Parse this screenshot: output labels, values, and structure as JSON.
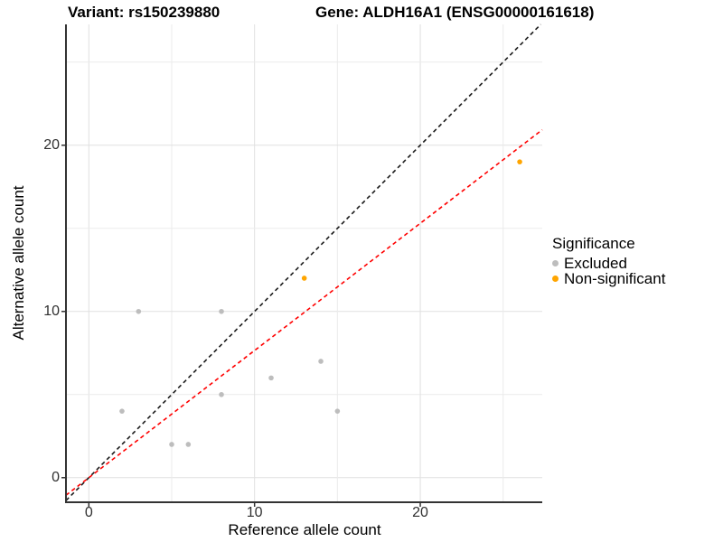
{
  "title": {
    "variant": "Variant: rs150239880",
    "gene": "Gene: ALDH16A1 (ENSG00000161618)"
  },
  "axes": {
    "x_label": "Reference allele count",
    "y_label": "Alternative allele count",
    "x_ticks": [
      0,
      10,
      20
    ],
    "y_ticks": [
      0,
      10,
      20
    ],
    "x_tick_labels": [
      "0",
      "10",
      "20"
    ],
    "y_tick_labels": [
      "0",
      "10",
      "20"
    ],
    "grid_values": [
      0,
      5,
      10,
      15,
      20,
      25
    ],
    "x_range": [
      -1.38,
      27.36
    ],
    "y_range": [
      -1.48,
      27.27
    ]
  },
  "legend": {
    "title": "Significance",
    "items": [
      {
        "label": "Excluded",
        "color": "#bdbdbd"
      },
      {
        "label": "Non-significant",
        "color": "#ffa500"
      }
    ]
  },
  "colors": {
    "excluded_point": "#bdbdbd",
    "non_significant_point": "#ffa500",
    "identity_line": "#1a1a1a",
    "fit_line": "#ff0000",
    "axis_line": "#333333",
    "gridline_major": "#e0e0e0",
    "gridline_minor": "#ebebeb"
  },
  "chart_data": {
    "type": "scatter",
    "title": "Variant: rs150239880   Gene: ALDH16A1 (ENSG00000161618)",
    "xlabel": "Reference allele count",
    "ylabel": "Alternative allele count",
    "xlim": [
      -1.38,
      27.36
    ],
    "ylim": [
      -1.48,
      27.27
    ],
    "grid": true,
    "legend_position": "right",
    "series": [
      {
        "name": "Excluded",
        "color": "#bdbdbd",
        "points": [
          [
            2,
            4
          ],
          [
            3,
            10
          ],
          [
            5,
            2
          ],
          [
            6,
            2
          ],
          [
            8,
            5
          ],
          [
            8,
            10
          ],
          [
            11,
            6
          ],
          [
            14,
            7
          ],
          [
            15,
            4
          ]
        ]
      },
      {
        "name": "Non-significant",
        "color": "#ffa500",
        "points": [
          [
            13,
            12
          ],
          [
            26,
            19
          ]
        ]
      }
    ],
    "lines": [
      {
        "name": "identity",
        "style": "dashed",
        "color": "#1a1a1a",
        "slope": 1,
        "intercept": 0
      },
      {
        "name": "fit",
        "style": "dashed",
        "color": "#ff0000",
        "slope": 0.765,
        "intercept": 0
      }
    ]
  }
}
